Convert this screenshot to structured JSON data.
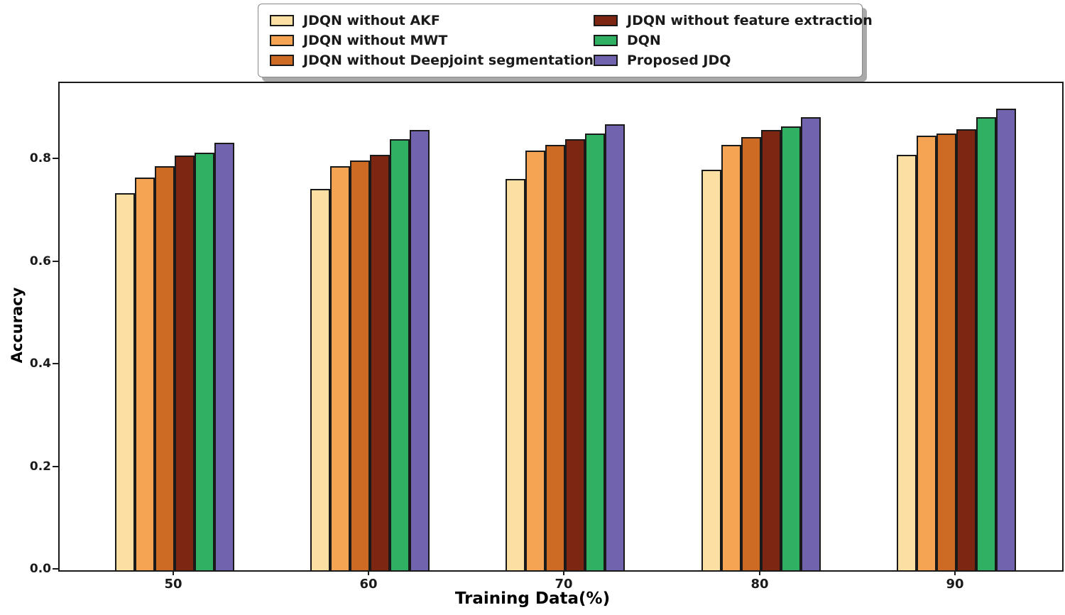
{
  "chart_data": {
    "type": "bar",
    "title": "",
    "xlabel": "Training Data(%)",
    "ylabel": "Accuracy",
    "categories": [
      "50",
      "60",
      "70",
      "80",
      "90"
    ],
    "series": [
      {
        "name": "JDQN without AKF",
        "color": "#fbdfa3",
        "values": [
          0.735,
          0.743,
          0.763,
          0.781,
          0.81
        ]
      },
      {
        "name": "JDQN without MWT",
        "color": "#f5a454",
        "values": [
          0.766,
          0.788,
          0.818,
          0.83,
          0.848
        ]
      },
      {
        "name": "JDQN without Deepjoint segmentation",
        "color": "#cd6a24",
        "values": [
          0.788,
          0.799,
          0.83,
          0.845,
          0.852
        ]
      },
      {
        "name": "JDQN without feature extraction",
        "color": "#7d2712",
        "values": [
          0.809,
          0.81,
          0.841,
          0.859,
          0.86
        ]
      },
      {
        "name": "DQN",
        "color": "#2fb062",
        "values": [
          0.814,
          0.841,
          0.852,
          0.865,
          0.883
        ]
      },
      {
        "name": "Proposed JDQ",
        "color": "#7163ae",
        "values": [
          0.833,
          0.858,
          0.87,
          0.884,
          0.9
        ]
      }
    ],
    "ylim": [
      0,
      0.95
    ],
    "yticks": [
      {
        "label": "0.0",
        "value": 0.0
      },
      {
        "label": "0.2",
        "value": 0.2
      },
      {
        "label": "0.4",
        "value": 0.4
      },
      {
        "label": "0.6",
        "value": 0.6
      },
      {
        "label": "0.8",
        "value": 0.8
      }
    ],
    "grid": false,
    "legend_position": "top-center-outside, 2 columns, shadowed box",
    "bar_edge_color": "#1a1a1a",
    "legend_columns": [
      [
        0,
        1,
        2
      ],
      [
        3,
        4,
        5
      ]
    ]
  }
}
